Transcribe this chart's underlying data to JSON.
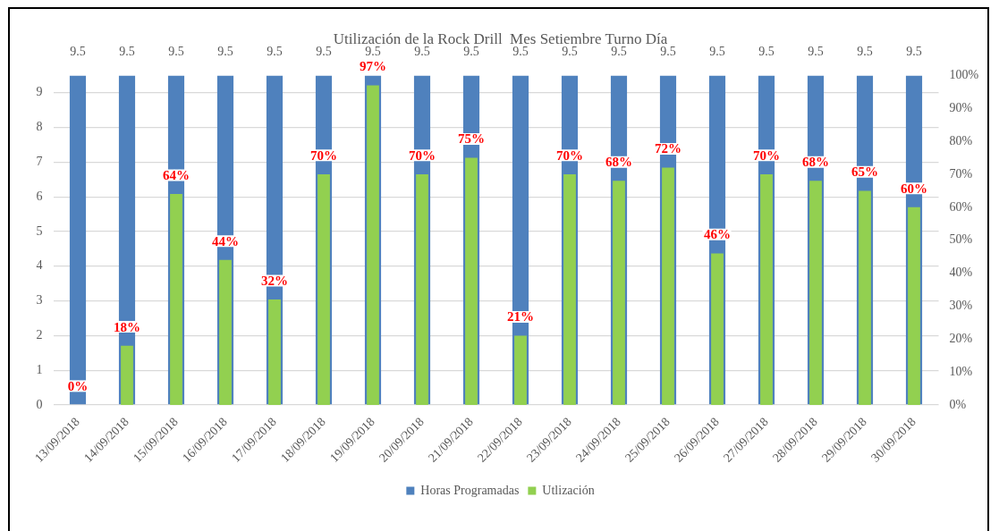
{
  "chart_data": {
    "type": "bar",
    "title": "Utilización de la Rock Drill  Mes Setiembre Turno Día",
    "categories": [
      "13/09/2018",
      "14/09/2018",
      "15/09/2018",
      "16/09/2018",
      "17/09/2018",
      "18/09/2018",
      "19/09/2018",
      "20/09/2018",
      "21/09/2018",
      "22/09/2018",
      "23/09/2018",
      "24/09/2018",
      "25/09/2018",
      "26/09/2018",
      "27/09/2018",
      "28/09/2018",
      "29/09/2018",
      "30/09/2018"
    ],
    "series": [
      {
        "name": "Horas Programadas",
        "color": "#4f81bd",
        "values": [
          9.5,
          9.5,
          9.5,
          9.5,
          9.5,
          9.5,
          9.5,
          9.5,
          9.5,
          9.5,
          9.5,
          9.5,
          9.5,
          9.5,
          9.5,
          9.5,
          9.5,
          9.5
        ],
        "value_labels": [
          "9.5",
          "9.5",
          "9.5",
          "9.5",
          "9.5",
          "9.5",
          "9.5",
          "9.5",
          "9.5",
          "9.5",
          "9.5",
          "9.5",
          "9.5",
          "9.5",
          "9.5",
          "9.5",
          "9.5",
          "9.5"
        ]
      },
      {
        "name": "Utlización",
        "color": "#92d050",
        "axis": "y2",
        "values": [
          0,
          18,
          64,
          44,
          32,
          70,
          97,
          70,
          75,
          21,
          70,
          68,
          72,
          46,
          70,
          68,
          65,
          60
        ],
        "value_labels": [
          "0%",
          "18%",
          "64%",
          "44%",
          "32%",
          "70%",
          "97%",
          "70%",
          "75%",
          "21%",
          "70%",
          "68%",
          "72%",
          "46%",
          "70%",
          "68%",
          "65%",
          "60%"
        ]
      }
    ],
    "ylim": [
      0,
      9.5
    ],
    "yticks": [
      0,
      1,
      2,
      3,
      4,
      5,
      6,
      7,
      8,
      9
    ],
    "y2lim": [
      0,
      100
    ],
    "y2ticks": [
      {
        "value": 0,
        "label": "0%"
      },
      {
        "value": 10,
        "label": "10%"
      },
      {
        "value": 20,
        "label": "20%"
      },
      {
        "value": 30,
        "label": "30%"
      },
      {
        "value": 40,
        "label": "40%"
      },
      {
        "value": 50,
        "label": "50%"
      },
      {
        "value": 60,
        "label": "60%"
      },
      {
        "value": 70,
        "label": "70%"
      },
      {
        "value": 80,
        "label": "80%"
      },
      {
        "value": 90,
        "label": "90%"
      },
      {
        "value": 100,
        "label": "100%"
      }
    ],
    "grid": "y",
    "legend": "bottom"
  }
}
